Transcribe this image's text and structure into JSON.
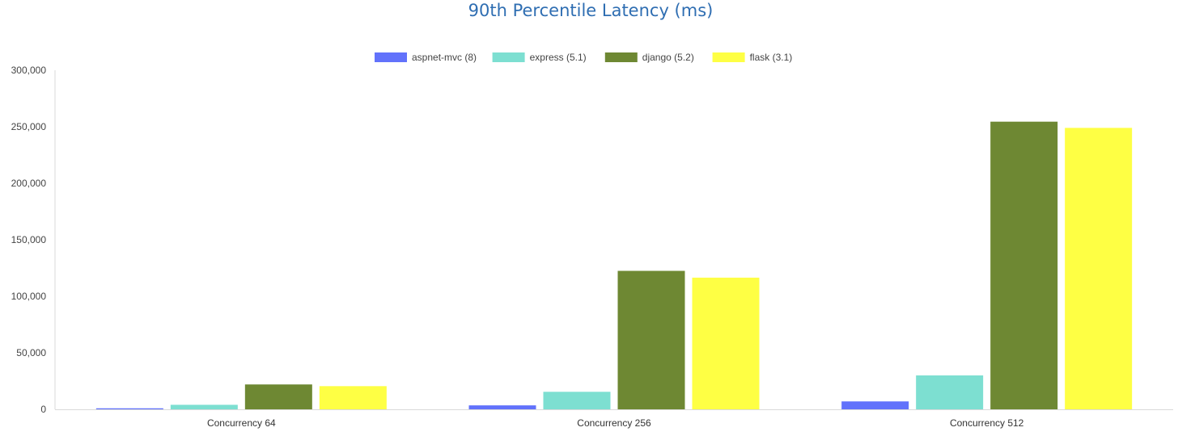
{
  "chart_data": {
    "type": "bar",
    "title": "90th Percentile Latency (ms)",
    "xlabel": "",
    "ylabel": "",
    "categories": [
      "Concurrency 64",
      "Concurrency 256",
      "Concurrency 512"
    ],
    "series": [
      {
        "name": "aspnet-mvc (8)",
        "color": "#6272fb",
        "values": [
          900,
          3500,
          7000
        ]
      },
      {
        "name": "express (5.1)",
        "color": "#7ddfd1",
        "values": [
          4000,
          15500,
          30000
        ]
      },
      {
        "name": "django (5.2)",
        "color": "#6e8833",
        "values": [
          22000,
          122500,
          254500
        ]
      },
      {
        "name": "flask (3.1)",
        "color": "#feff44",
        "values": [
          20500,
          116500,
          249000
        ]
      }
    ],
    "ylim": [
      0,
      300000
    ],
    "yticks": [
      0,
      50000,
      100000,
      150000,
      200000,
      250000,
      300000
    ],
    "ytick_labels": [
      "0",
      "50,000",
      "100,000",
      "150,000",
      "200,000",
      "250,000",
      "300,000"
    ],
    "grid": false,
    "legend_position": "top"
  }
}
